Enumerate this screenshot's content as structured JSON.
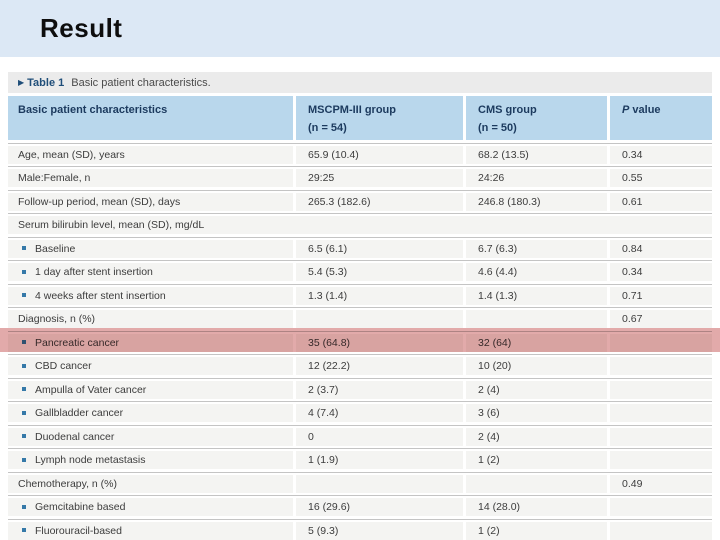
{
  "slide": {
    "title": "Result"
  },
  "table": {
    "caption": {
      "marker": "▶",
      "label": "Table 1",
      "text": "Basic patient characteristics."
    },
    "columns": [
      {
        "label": "Basic patient characteristics",
        "sub": ""
      },
      {
        "label": "MSCPM-III group",
        "sub": "(n = 54)"
      },
      {
        "label": "CMS group",
        "sub": "(n = 50)"
      },
      {
        "label": "P value",
        "sub": ""
      }
    ],
    "rows": [
      {
        "type": "item",
        "label": "Age, mean (SD), years",
        "mscpm": "65.9 (10.4)",
        "cms": "68.2 (13.5)",
        "p": "0.34",
        "highlight": false
      },
      {
        "type": "item",
        "label": "Male:Female, n",
        "mscpm": "29:25",
        "cms": "24:26",
        "p": "0.55",
        "highlight": false
      },
      {
        "type": "item",
        "label": "Follow-up period, mean (SD), days",
        "mscpm": "265.3 (182.6)",
        "cms": "246.8 (180.3)",
        "p": "0.61",
        "highlight": false
      },
      {
        "type": "section",
        "label": "Serum bilirubin level, mean (SD), mg/dL",
        "mscpm": "",
        "cms": "",
        "p": "",
        "highlight": false
      },
      {
        "type": "sub",
        "label": "Baseline",
        "mscpm": "6.5 (6.1)",
        "cms": "6.7 (6.3)",
        "p": "0.84",
        "highlight": false
      },
      {
        "type": "sub",
        "label": "1 day after stent insertion",
        "mscpm": "5.4 (5.3)",
        "cms": "4.6 (4.4)",
        "p": "0.34",
        "highlight": false
      },
      {
        "type": "sub",
        "label": "4 weeks after stent insertion",
        "mscpm": "1.3 (1.4)",
        "cms": "1.4 (1.3)",
        "p": "0.71",
        "highlight": false
      },
      {
        "type": "item",
        "label": "Diagnosis, n (%)",
        "mscpm": "",
        "cms": "",
        "p": "0.67",
        "highlight": false
      },
      {
        "type": "sub",
        "label": "Pancreatic cancer",
        "mscpm": "35 (64.8)",
        "cms": "32 (64)",
        "p": "",
        "highlight": true
      },
      {
        "type": "sub",
        "label": "CBD cancer",
        "mscpm": "12 (22.2)",
        "cms": "10 (20)",
        "p": "",
        "highlight": false
      },
      {
        "type": "sub",
        "label": "Ampulla of Vater cancer",
        "mscpm": "2 (3.7)",
        "cms": "2 (4)",
        "p": "",
        "highlight": false
      },
      {
        "type": "sub",
        "label": "Gallbladder cancer",
        "mscpm": "4 (7.4)",
        "cms": "3 (6)",
        "p": "",
        "highlight": false
      },
      {
        "type": "sub",
        "label": "Duodenal cancer",
        "mscpm": "0",
        "cms": "2 (4)",
        "p": "",
        "highlight": false
      },
      {
        "type": "sub",
        "label": "Lymph node metastasis",
        "mscpm": "1 (1.9)",
        "cms": "1 (2)",
        "p": "",
        "highlight": false
      },
      {
        "type": "item",
        "label": "Chemotherapy, n (%)",
        "mscpm": "",
        "cms": "",
        "p": "0.49",
        "highlight": false
      },
      {
        "type": "sub",
        "label": "Gemcitabine based",
        "mscpm": "16 (29.6)",
        "cms": "14 (28.0)",
        "p": "",
        "highlight": false
      },
      {
        "type": "sub",
        "label": "Fluorouracil-based",
        "mscpm": "5 (9.3)",
        "cms": "1 (2)",
        "p": "",
        "highlight": false
      }
    ]
  },
  "colors": {
    "title_band": "#dce8f5",
    "header_blue": "#b9d7ec",
    "caption_gray": "#ebebeb",
    "cell_bg": "#f4f4f2",
    "navy_text": "#1c3a5e",
    "bullet_blue": "#3579a8",
    "highlight": "#c75858"
  }
}
